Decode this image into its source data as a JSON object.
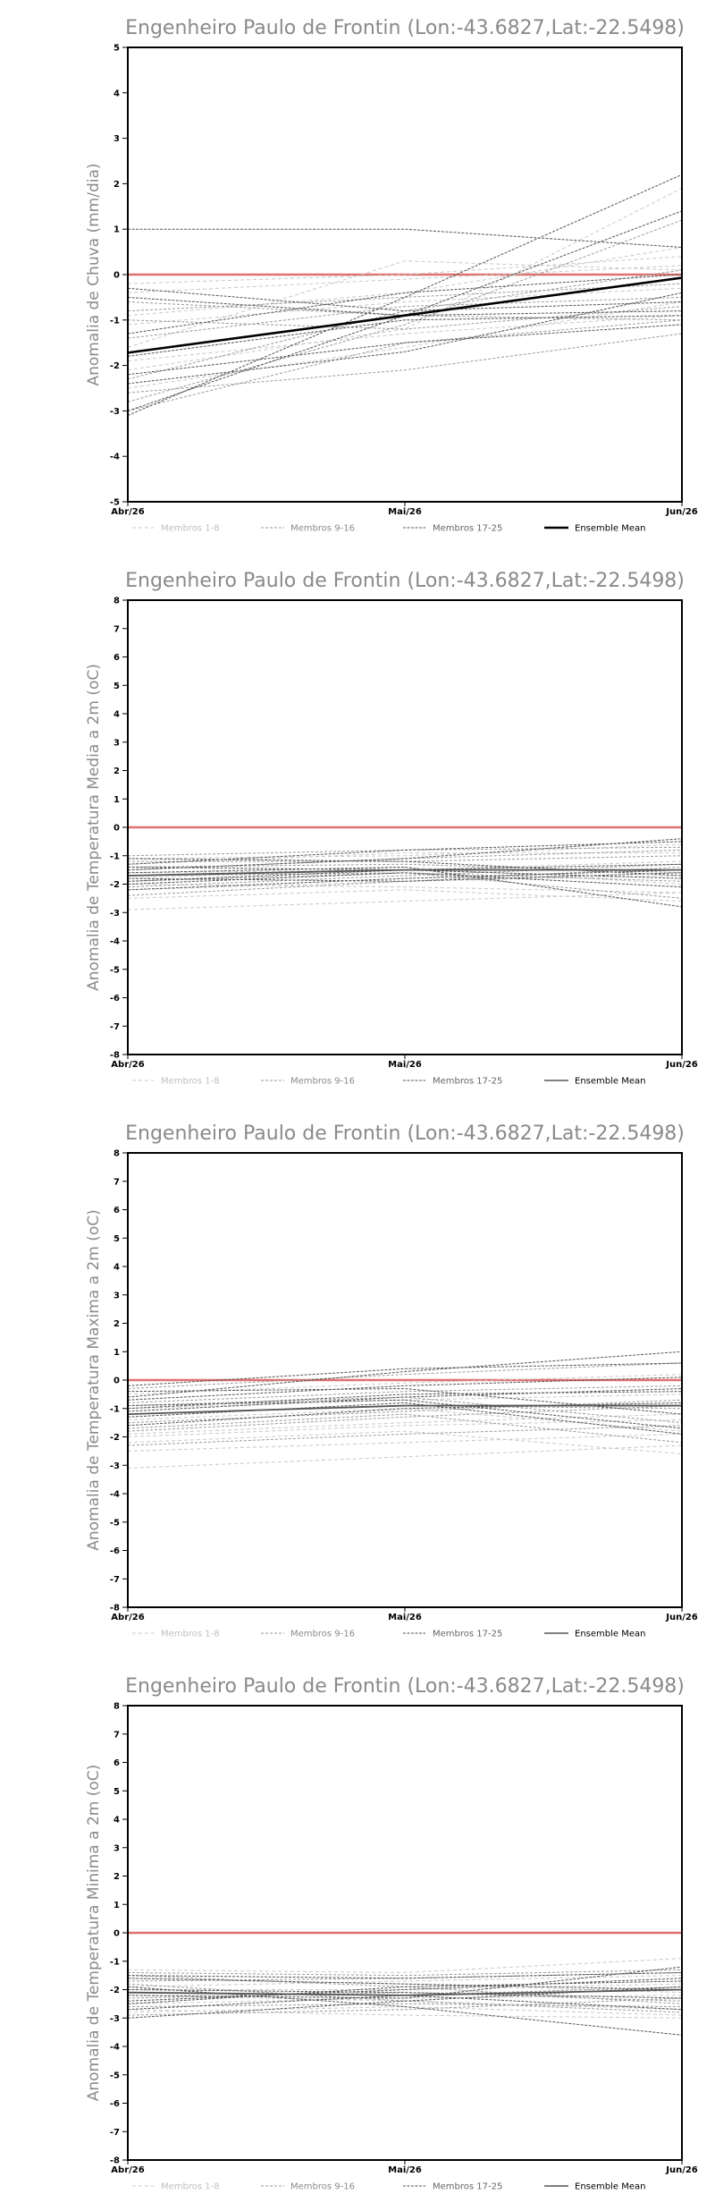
{
  "chart_data": [
    {
      "type": "line",
      "title": "Engenheiro Paulo de Frontin (Lon:-43.6827,Lat:-22.5498)",
      "ylabel": "Anomalia de Chuva (mm/dia)",
      "x": [
        "Abr/26",
        "Mai/26",
        "Jun/26"
      ],
      "ylim": [
        -5,
        5
      ],
      "yticks": [
        -5,
        -4,
        -3,
        -2,
        -1,
        0,
        1,
        2,
        3,
        4,
        5
      ],
      "legend": [
        "Membros 1-8",
        "Membros 9-16",
        "Membros 17-25",
        "Ensemble Mean"
      ],
      "legend_placement": "bottom",
      "reference_line": 0,
      "colors": {
        "reference": "#e07070",
        "mean": "#000000",
        "members_1_8": "#c8c8c8",
        "members_9_16": "#9a9a9a",
        "members_17_25": "#555555"
      },
      "mean_bold": true,
      "series": [
        {
          "group": 1,
          "values": [
            -0.4,
            -0.1,
            0.2
          ]
        },
        {
          "group": 1,
          "values": [
            -0.9,
            -0.4,
            0.6
          ]
        },
        {
          "group": 1,
          "values": [
            -2.1,
            -1.2,
            1.9
          ]
        },
        {
          "group": 1,
          "values": [
            -1.6,
            0.3,
            0.1
          ]
        },
        {
          "group": 1,
          "values": [
            -2.5,
            -1.6,
            -0.6
          ]
        },
        {
          "group": 1,
          "values": [
            -1.1,
            -0.6,
            -0.3
          ]
        },
        {
          "group": 1,
          "values": [
            -0.2,
            0.0,
            0.4
          ]
        },
        {
          "group": 1,
          "values": [
            -1.9,
            -1.3,
            -0.9
          ]
        },
        {
          "group": 2,
          "values": [
            -2.3,
            -0.8,
            0.1
          ]
        },
        {
          "group": 2,
          "values": [
            -2.6,
            -2.1,
            -1.3
          ]
        },
        {
          "group": 2,
          "values": [
            -1.4,
            -0.7,
            -0.5
          ]
        },
        {
          "group": 2,
          "values": [
            -0.6,
            -0.9,
            -1.0
          ]
        },
        {
          "group": 2,
          "values": [
            -2.8,
            -1.1,
            1.2
          ]
        },
        {
          "group": 2,
          "values": [
            -1.0,
            -1.2,
            -0.7
          ]
        },
        {
          "group": 2,
          "values": [
            -3.0,
            -1.5,
            -1.0
          ]
        },
        {
          "group": 2,
          "values": [
            -0.8,
            -0.5,
            -0.2
          ]
        },
        {
          "group": 3,
          "values": [
            1.0,
            1.0,
            0.6
          ]
        },
        {
          "group": 3,
          "values": [
            -3.1,
            -0.5,
            2.2
          ]
        },
        {
          "group": 3,
          "values": [
            -3.0,
            -0.9,
            1.4
          ]
        },
        {
          "group": 3,
          "values": [
            -2.2,
            -1.5,
            -1.1
          ]
        },
        {
          "group": 3,
          "values": [
            -0.3,
            -0.8,
            -0.6
          ]
        },
        {
          "group": 3,
          "values": [
            -1.3,
            -0.4,
            0.0
          ]
        },
        {
          "group": 3,
          "values": [
            -0.5,
            -0.9,
            -0.8
          ]
        },
        {
          "group": 3,
          "values": [
            -1.8,
            -1.0,
            -0.9
          ]
        },
        {
          "group": 3,
          "values": [
            -2.4,
            -1.7,
            -0.4
          ]
        },
        {
          "group": 0,
          "name": "Ensemble Mean",
          "values": [
            -1.72,
            -0.9,
            -0.07
          ]
        }
      ]
    },
    {
      "type": "line",
      "title": "Engenheiro Paulo de Frontin (Lon:-43.6827,Lat:-22.5498)",
      "ylabel": "Anomalia de Temperatura Media a 2m (oC)",
      "x": [
        "Abr/26",
        "Mai/26",
        "Jun/26"
      ],
      "ylim": [
        -8,
        8
      ],
      "yticks": [
        -8,
        -7,
        -6,
        -5,
        -4,
        -3,
        -2,
        -1,
        0,
        1,
        2,
        3,
        4,
        5,
        6,
        7,
        8
      ],
      "legend": [
        "Membros 1-8",
        "Membros 9-16",
        "Membros 17-25",
        "Ensemble Mean"
      ],
      "legend_placement": "bottom",
      "reference_line": 0,
      "colors": {
        "reference": "#e07070",
        "mean": "#555555",
        "members_1_8": "#c8c8c8",
        "members_9_16": "#9a9a9a",
        "members_17_25": "#555555"
      },
      "mean_bold": false,
      "series": [
        {
          "group": 1,
          "values": [
            -2.9,
            -2.6,
            -2.3
          ]
        },
        {
          "group": 1,
          "values": [
            -2.5,
            -2.2,
            -2.6
          ]
        },
        {
          "group": 1,
          "values": [
            -1.6,
            -1.5,
            -1.2
          ]
        },
        {
          "group": 1,
          "values": [
            -1.1,
            -1.0,
            -0.6
          ]
        },
        {
          "group": 1,
          "values": [
            -2.2,
            -1.9,
            -1.7
          ]
        },
        {
          "group": 1,
          "values": [
            -1.8,
            -1.4,
            -2.0
          ]
        },
        {
          "group": 1,
          "values": [
            -1.3,
            -0.9,
            -0.9
          ]
        },
        {
          "group": 1,
          "values": [
            -2.0,
            -2.1,
            -2.3
          ]
        },
        {
          "group": 2,
          "values": [
            -1.5,
            -1.1,
            -0.8
          ]
        },
        {
          "group": 2,
          "values": [
            -2.4,
            -1.9,
            -1.4
          ]
        },
        {
          "group": 2,
          "values": [
            -1.0,
            -0.8,
            -0.7
          ]
        },
        {
          "group": 2,
          "values": [
            -1.9,
            -1.6,
            -1.9
          ]
        },
        {
          "group": 2,
          "values": [
            -1.4,
            -1.3,
            -1.6
          ]
        },
        {
          "group": 2,
          "values": [
            -2.1,
            -1.7,
            -1.3
          ]
        },
        {
          "group": 2,
          "values": [
            -1.7,
            -1.6,
            -2.5
          ]
        },
        {
          "group": 2,
          "values": [
            -1.2,
            -1.2,
            -1.0
          ]
        },
        {
          "group": 3,
          "values": [
            -1.3,
            -0.8,
            -0.5
          ]
        },
        {
          "group": 3,
          "values": [
            -1.6,
            -1.4,
            -2.8
          ]
        },
        {
          "group": 3,
          "values": [
            -2.2,
            -1.8,
            -1.5
          ]
        },
        {
          "group": 3,
          "values": [
            -1.1,
            -1.2,
            -1.7
          ]
        },
        {
          "group": 3,
          "values": [
            -1.9,
            -1.5,
            -1.3
          ]
        },
        {
          "group": 3,
          "values": [
            -2.0,
            -1.6,
            -2.1
          ]
        },
        {
          "group": 3,
          "values": [
            -1.5,
            -1.1,
            -0.4
          ]
        },
        {
          "group": 3,
          "values": [
            -1.8,
            -1.9,
            -1.6
          ]
        },
        {
          "group": 3,
          "values": [
            -1.4,
            -1.5,
            -1.8
          ]
        },
        {
          "group": 0,
          "name": "Ensemble Mean",
          "values": [
            -1.7,
            -1.5,
            -1.5
          ]
        }
      ]
    },
    {
      "type": "line",
      "title": "Engenheiro Paulo de Frontin (Lon:-43.6827,Lat:-22.5498)",
      "ylabel": "Anomalia de Temperatura Maxima a 2m (oC)",
      "x": [
        "Abr/26",
        "Mai/26",
        "Jun/26"
      ],
      "ylim": [
        -8,
        8
      ],
      "yticks": [
        -8,
        -7,
        -6,
        -5,
        -4,
        -3,
        -2,
        -1,
        0,
        1,
        2,
        3,
        4,
        5,
        6,
        7,
        8
      ],
      "legend": [
        "Membros 1-8",
        "Membros 9-16",
        "Membros 17-25",
        "Ensemble Mean"
      ],
      "legend_placement": "bottom",
      "reference_line": 0,
      "colors": {
        "reference": "#e07070",
        "mean": "#555555",
        "members_1_8": "#c8c8c8",
        "members_9_16": "#9a9a9a",
        "members_17_25": "#555555"
      },
      "mean_bold": false,
      "series": [
        {
          "group": 1,
          "values": [
            -3.1,
            -2.7,
            -2.3
          ]
        },
        {
          "group": 1,
          "values": [
            -2.5,
            -2.2,
            -1.9
          ]
        },
        {
          "group": 1,
          "values": [
            -0.5,
            -0.1,
            0.2
          ]
        },
        {
          "group": 1,
          "values": [
            -1.9,
            -1.5,
            -1.2
          ]
        },
        {
          "group": 1,
          "values": [
            -2.2,
            -1.8,
            -2.6
          ]
        },
        {
          "group": 1,
          "values": [
            -1.0,
            -0.7,
            -0.5
          ]
        },
        {
          "group": 1,
          "values": [
            -1.4,
            -1.0,
            -1.8
          ]
        },
        {
          "group": 1,
          "values": [
            -2.0,
            -1.6,
            -1.4
          ]
        },
        {
          "group": 2,
          "values": [
            -0.8,
            -0.4,
            -0.2
          ]
        },
        {
          "group": 2,
          "values": [
            -1.7,
            -1.2,
            -2.2
          ]
        },
        {
          "group": 2,
          "values": [
            -1.2,
            -0.9,
            -1.0
          ]
        },
        {
          "group": 2,
          "values": [
            -0.3,
            0.2,
            0.6
          ]
        },
        {
          "group": 2,
          "values": [
            -2.3,
            -1.9,
            -1.6
          ]
        },
        {
          "group": 2,
          "values": [
            -1.5,
            -1.1,
            -0.7
          ]
        },
        {
          "group": 2,
          "values": [
            -0.9,
            -0.6,
            -1.5
          ]
        },
        {
          "group": 2,
          "values": [
            -1.8,
            -1.3,
            -0.9
          ]
        },
        {
          "group": 3,
          "values": [
            -0.6,
            0.3,
            1.0
          ]
        },
        {
          "group": 3,
          "values": [
            -0.2,
            0.4,
            0.6
          ]
        },
        {
          "group": 3,
          "values": [
            -1.0,
            -0.5,
            -0.4
          ]
        },
        {
          "group": 3,
          "values": [
            -1.3,
            -0.8,
            -1.9
          ]
        },
        {
          "group": 3,
          "values": [
            -0.7,
            -0.2,
            0.1
          ]
        },
        {
          "group": 3,
          "values": [
            -1.6,
            -1.0,
            -0.8
          ]
        },
        {
          "group": 3,
          "values": [
            -0.4,
            -0.3,
            -1.2
          ]
        },
        {
          "group": 3,
          "values": [
            -1.1,
            -0.6,
            -0.3
          ]
        },
        {
          "group": 3,
          "values": [
            -0.9,
            -0.7,
            -1.7
          ]
        },
        {
          "group": 0,
          "name": "Ensemble Mean",
          "values": [
            -1.2,
            -0.9,
            -0.9
          ]
        }
      ]
    },
    {
      "type": "line",
      "title": "Engenheiro Paulo de Frontin (Lon:-43.6827,Lat:-22.5498)",
      "ylabel": "Anomalia de Temperatura Minima a 2m (oC)",
      "x": [
        "Abr/26",
        "Mai/26",
        "Jun/26"
      ],
      "ylim": [
        -8,
        8
      ],
      "yticks": [
        -8,
        -7,
        -6,
        -5,
        -4,
        -3,
        -2,
        -1,
        0,
        1,
        2,
        3,
        4,
        5,
        6,
        7,
        8
      ],
      "legend": [
        "Membros 1-8",
        "Membros 9-16",
        "Membros 17-25",
        "Ensemble Mean"
      ],
      "legend_placement": "bottom",
      "reference_line": 0,
      "colors": {
        "reference": "#e07070",
        "mean": "#555555",
        "members_1_8": "#c8c8c8",
        "members_9_16": "#9a9a9a",
        "members_17_25": "#555555"
      },
      "mean_bold": false,
      "series": [
        {
          "group": 1,
          "values": [
            -2.8,
            -2.6,
            -2.9
          ]
        },
        {
          "group": 1,
          "values": [
            -2.2,
            -2.4,
            -2.7
          ]
        },
        {
          "group": 1,
          "values": [
            -1.3,
            -1.4,
            -0.9
          ]
        },
        {
          "group": 1,
          "values": [
            -2.5,
            -2.3,
            -2.2
          ]
        },
        {
          "group": 1,
          "values": [
            -1.9,
            -1.7,
            -1.5
          ]
        },
        {
          "group": 1,
          "values": [
            -2.7,
            -2.9,
            -3.0
          ]
        },
        {
          "group": 1,
          "values": [
            -1.6,
            -1.8,
            -2.1
          ]
        },
        {
          "group": 1,
          "values": [
            -2.0,
            -2.0,
            -1.8
          ]
        },
        {
          "group": 2,
          "values": [
            -2.3,
            -2.1,
            -2.4
          ]
        },
        {
          "group": 2,
          "values": [
            -1.7,
            -1.6,
            -1.4
          ]
        },
        {
          "group": 2,
          "values": [
            -2.6,
            -2.5,
            -2.6
          ]
        },
        {
          "group": 2,
          "values": [
            -1.5,
            -1.9,
            -2.5
          ]
        },
        {
          "group": 2,
          "values": [
            -2.9,
            -2.7,
            -2.3
          ]
        },
        {
          "group": 2,
          "values": [
            -2.1,
            -2.2,
            -1.9
          ]
        },
        {
          "group": 2,
          "values": [
            -1.4,
            -1.5,
            -1.3
          ]
        },
        {
          "group": 2,
          "values": [
            -1.8,
            -2.4,
            -2.8
          ]
        },
        {
          "group": 3,
          "values": [
            -3.0,
            -2.4,
            -1.9
          ]
        },
        {
          "group": 3,
          "values": [
            -1.9,
            -2.6,
            -3.6
          ]
        },
        {
          "group": 3,
          "values": [
            -2.4,
            -2.0,
            -1.6
          ]
        },
        {
          "group": 3,
          "values": [
            -1.6,
            -1.8,
            -2.0
          ]
        },
        {
          "group": 3,
          "values": [
            -2.2,
            -2.3,
            -1.2
          ]
        },
        {
          "group": 3,
          "values": [
            -2.7,
            -2.2,
            -2.7
          ]
        },
        {
          "group": 3,
          "values": [
            -1.5,
            -1.6,
            -1.4
          ]
        },
        {
          "group": 3,
          "values": [
            -2.0,
            -2.1,
            -2.3
          ]
        },
        {
          "group": 3,
          "values": [
            -2.5,
            -1.9,
            -1.7
          ]
        },
        {
          "group": 0,
          "name": "Ensemble Mean",
          "values": [
            -2.1,
            -2.2,
            -2.0
          ]
        }
      ]
    }
  ]
}
